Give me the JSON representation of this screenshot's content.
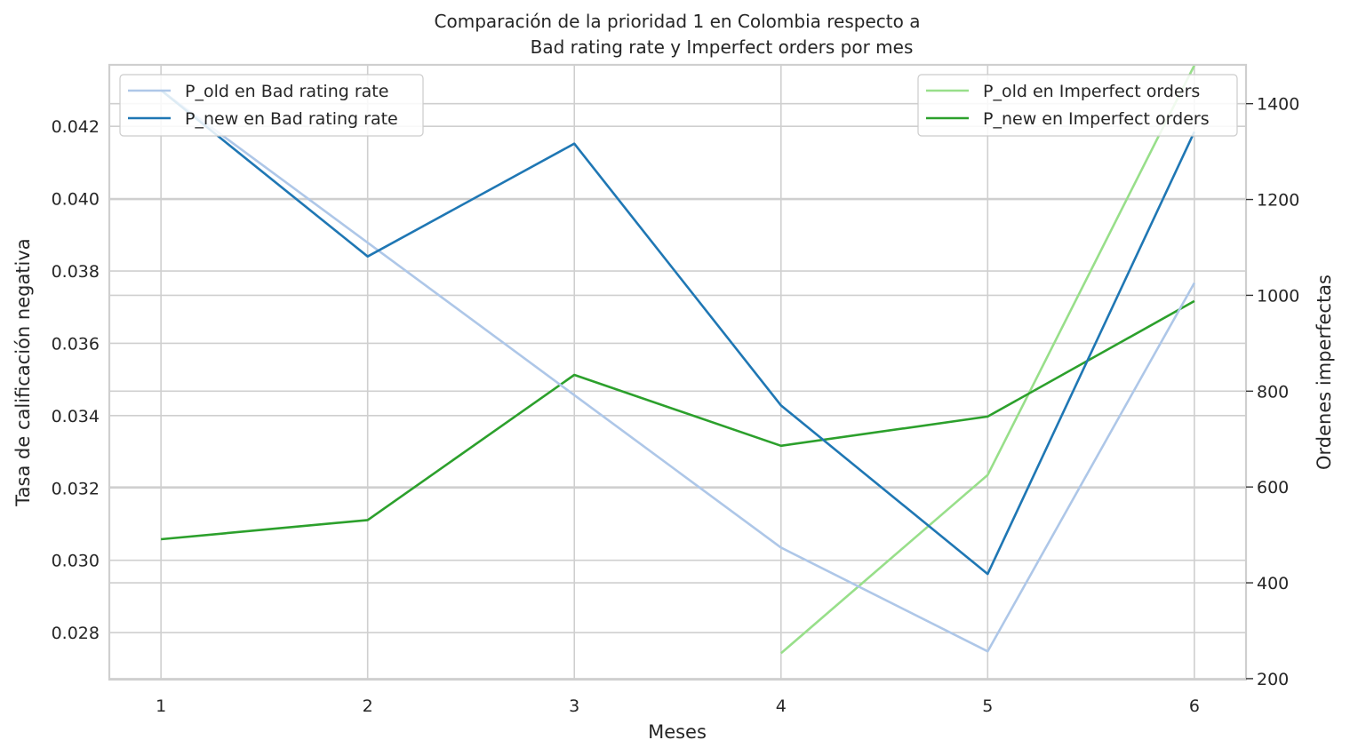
{
  "chart_data": {
    "type": "line",
    "title_line1": "Comparación de la prioridad 1 en Colombia respecto a",
    "title_line2": "Bad rating rate y Imperfect orders por mes",
    "xlabel": "Meses",
    "ylabel_left": "Tasa de calificación negativa",
    "ylabel_right": "Ordenes imperfectas",
    "x": [
      1,
      2,
      3,
      4,
      5,
      6
    ],
    "xlim": [
      0.75,
      6.25
    ],
    "ylim_left": [
      0.0267,
      0.0437
    ],
    "ylim_right": [
      198,
      1481
    ],
    "yticks_left": [
      "0.028",
      "0.030",
      "0.032",
      "0.034",
      "0.036",
      "0.038",
      "0.040",
      "0.042"
    ],
    "yticks_right": [
      "200",
      "400",
      "600",
      "800",
      "1000",
      "1200",
      "1400"
    ],
    "grid": true,
    "legend_left_position": "upper-left",
    "legend_right_position": "upper-right",
    "series_left": [
      {
        "name": "P_old en Bad rating rate",
        "color": "#aec7e8",
        "x": [
          1,
          4,
          5,
          6
        ],
        "values": [
          0.043,
          0.03035,
          0.02748,
          0.03767
        ]
      },
      {
        "name": "P_new en Bad rating rate",
        "color": "#1f77b4",
        "x": [
          1,
          2,
          3,
          4,
          5,
          6
        ],
        "values": [
          0.043,
          0.0384,
          0.04152,
          0.03428,
          0.02962,
          0.04185
        ]
      }
    ],
    "series_right": [
      {
        "name": "P_old en Imperfect orders",
        "color": "#98df8a",
        "x": [
          4,
          5,
          6
        ],
        "values": [
          253,
          625,
          1480
        ]
      },
      {
        "name": "P_new en Imperfect orders",
        "color": "#2ca02c",
        "x": [
          1,
          2,
          3,
          4,
          5,
          6
        ],
        "values": [
          491,
          531,
          834,
          686,
          747,
          988
        ]
      }
    ]
  }
}
